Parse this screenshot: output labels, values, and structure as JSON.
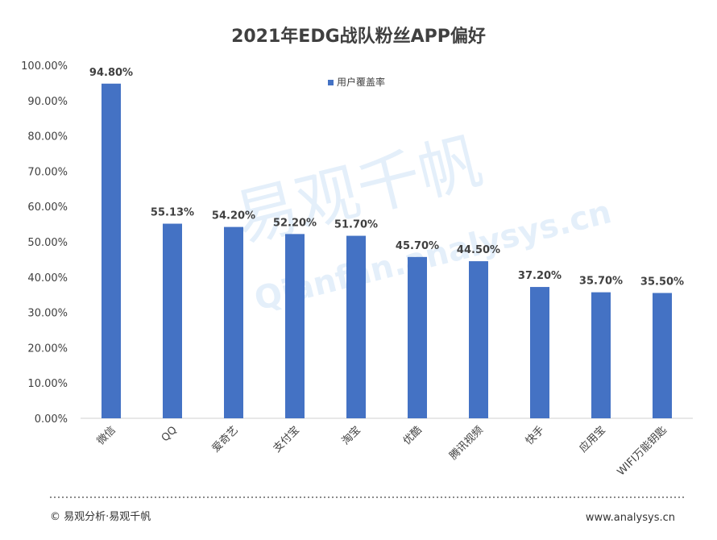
{
  "chart_data": {
    "type": "bar",
    "title": "2021年EDG战队粉丝APP偏好",
    "categories": [
      "微信",
      "QQ",
      "爱奇艺",
      "支付宝",
      "淘宝",
      "优酷",
      "腾讯视频",
      "快手",
      "应用宝",
      "WIFI万能钥匙"
    ],
    "series": [
      {
        "name": "用户覆盖率",
        "values": [
          94.8,
          55.13,
          54.2,
          52.2,
          51.7,
          45.7,
          44.5,
          37.2,
          35.7,
          35.5
        ],
        "labels": [
          "94.80%",
          "55.13%",
          "54.20%",
          "52.20%",
          "51.70%",
          "45.70%",
          "44.50%",
          "37.20%",
          "35.70%",
          "35.50%"
        ]
      }
    ],
    "yticks": [
      "0.00%",
      "10.00%",
      "20.00%",
      "30.00%",
      "40.00%",
      "50.00%",
      "60.00%",
      "70.00%",
      "80.00%",
      "90.00%",
      "100.00%"
    ],
    "ylim": [
      0,
      100
    ],
    "legend_position": "top",
    "grid": false,
    "bar_color": "#4472c4"
  },
  "watermark": {
    "cn": "易观千帆",
    "en": "Qianfan.analysys.cn"
  },
  "footer": {
    "left": "© 易观分析·易观千帆",
    "right": "www.analysys.cn"
  }
}
